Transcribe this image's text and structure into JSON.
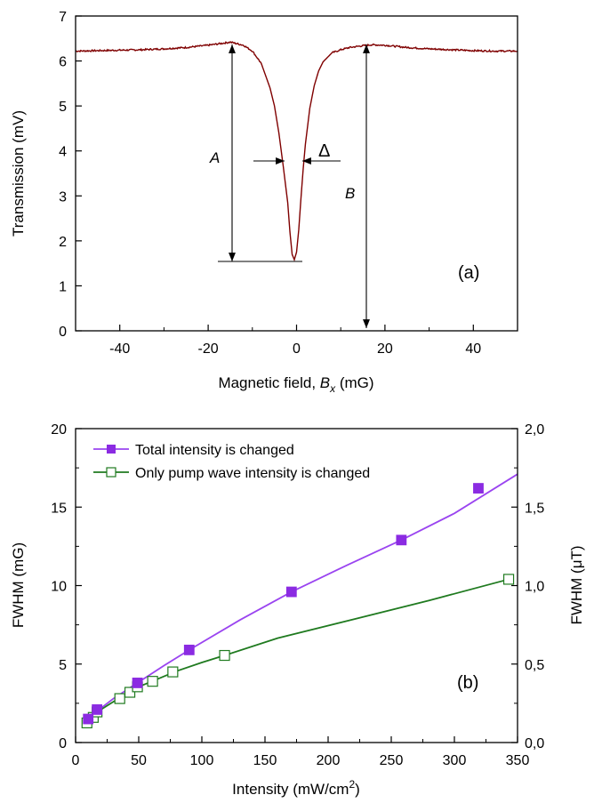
{
  "colors": {
    "trace": "#7f0000",
    "total": "#8b2be2",
    "total_line": "#9a44f0",
    "pump": "#1f7a1f"
  },
  "chart_data": [
    {
      "type": "line",
      "panel_label": "(a)",
      "xlabel_prefix": "Magnetic field, ",
      "xlabel_var": "B",
      "xlabel_sub": "x",
      "xlabel_suffix": " (mG)",
      "ylabel": "Transmission (mV)",
      "xlim": [
        -50,
        50
      ],
      "ylim": [
        0,
        7
      ],
      "xticks": [
        -40,
        -20,
        0,
        20,
        40
      ],
      "yticks": [
        0,
        1,
        2,
        3,
        4,
        5,
        6,
        7
      ],
      "annotations": {
        "A": "A",
        "B": "B",
        "delta": "Δ"
      },
      "series": [
        {
          "x": [
            -50,
            -45,
            -40,
            -35,
            -30,
            -25,
            -20,
            -17,
            -15,
            -12,
            -10,
            -8,
            -6,
            -5,
            -4,
            -3,
            -2,
            -1.5,
            -1,
            -0.5,
            0,
            0.5,
            1,
            1.5,
            2,
            3,
            4,
            5,
            6,
            8,
            10,
            12,
            15,
            17,
            20,
            25,
            30,
            35,
            40,
            45,
            50
          ],
          "y": [
            6.22,
            6.23,
            6.24,
            6.25,
            6.27,
            6.3,
            6.35,
            6.39,
            6.42,
            6.35,
            6.22,
            5.95,
            5.4,
            5.0,
            4.4,
            3.65,
            2.85,
            2.2,
            1.7,
            1.58,
            1.75,
            2.25,
            2.95,
            3.6,
            4.15,
            4.95,
            5.45,
            5.78,
            5.98,
            6.18,
            6.25,
            6.3,
            6.34,
            6.36,
            6.35,
            6.3,
            6.27,
            6.25,
            6.23,
            6.22,
            6.22
          ]
        }
      ]
    },
    {
      "type": "line",
      "panel_label": "(b)",
      "xlabel_prefix": "Intensity (mW/cm",
      "xlabel_sup": "2",
      "xlabel_suffix": ")",
      "ylabel": "FWHM (mG)",
      "ylabel_right": "FWHM (μT)",
      "xlim": [
        0,
        350
      ],
      "ylim": [
        0,
        20
      ],
      "ylim_right": [
        0,
        2
      ],
      "xticks": [
        0,
        50,
        100,
        150,
        200,
        250,
        300,
        350
      ],
      "yticks": [
        0,
        5,
        10,
        15,
        20
      ],
      "yticks_right": [
        "0,0",
        "0,5",
        "1,0",
        "1,5",
        "2,0"
      ],
      "legend": "top-left",
      "series": [
        {
          "name": "Total intensity is changed",
          "marker": "filled-square",
          "x": [
            10,
            17,
            49,
            90,
            171,
            258,
            319
          ],
          "y": [
            1.5,
            2.1,
            3.8,
            5.9,
            9.6,
            12.9,
            16.2
          ],
          "fit_x": [
            10,
            17,
            30,
            49,
            70,
            90,
            130,
            171,
            215,
            258,
            300,
            350
          ],
          "fit_y": [
            1.5,
            2.0,
            2.8,
            3.8,
            4.9,
            5.9,
            7.8,
            9.6,
            11.3,
            12.9,
            14.6,
            17.1
          ]
        },
        {
          "name": "Only pump wave intensity is changed",
          "marker": "open-square",
          "x": [
            9,
            14,
            17,
            35,
            43,
            49,
            61,
            77,
            118,
            343
          ],
          "y": [
            1.25,
            1.6,
            1.95,
            2.8,
            3.2,
            3.55,
            3.9,
            4.5,
            5.55,
            10.4
          ],
          "fit_x": [
            9,
            20,
            35,
            50,
            65,
            80,
            100,
            118,
            160,
            220,
            280,
            343
          ],
          "fit_y": [
            1.25,
            2.1,
            2.85,
            3.55,
            4.05,
            4.55,
            5.1,
            5.55,
            6.65,
            7.85,
            9.05,
            10.4
          ]
        }
      ]
    }
  ]
}
